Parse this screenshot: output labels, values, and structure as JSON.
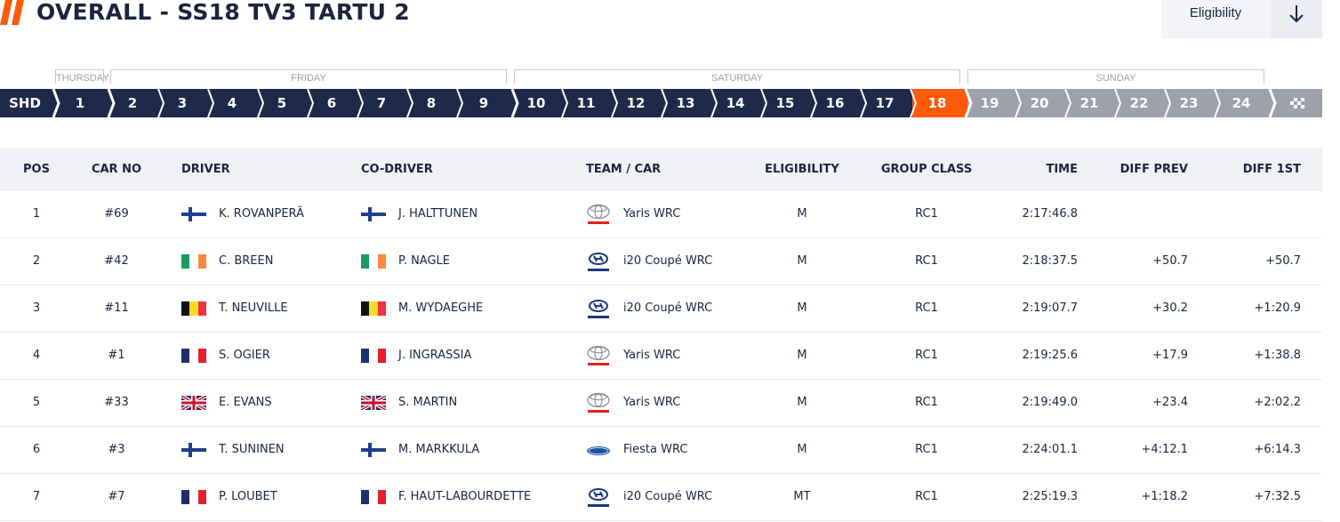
{
  "header": {
    "title": "OVERALL - SS18 TV3 TARTU 2",
    "eligibility_button": "Eligibility"
  },
  "colors": {
    "navy": "#1f2a4a",
    "accent": "#ff5a0a",
    "future": "#9ea1aa"
  },
  "days": [
    "THURSDAY",
    "FRIDAY",
    "SATURDAY",
    "SUNDAY"
  ],
  "stages": [
    "SHD",
    "1",
    "2",
    "3",
    "4",
    "5",
    "6",
    "7",
    "8",
    "9",
    "10",
    "11",
    "12",
    "13",
    "14",
    "15",
    "16",
    "17",
    "18",
    "19",
    "20",
    "21",
    "22",
    "23",
    "24"
  ],
  "current_stage": "18",
  "columns": [
    "POS",
    "CAR NO",
    "DRIVER",
    "CO-DRIVER",
    "TEAM / CAR",
    "ELIGIBILITY",
    "GROUP CLASS",
    "TIME",
    "DIFF PREV",
    "DIFF 1ST"
  ],
  "rows": [
    {
      "pos": "1",
      "car": "#69",
      "driver": "K. ROVANPERÄ",
      "codriver": "J. HALTTUNEN",
      "team_car": "Yaris WRC",
      "eligibility": "M",
      "class": "RC1",
      "time": "2:17:46.8",
      "diff_prev": "",
      "diff_first": ""
    },
    {
      "pos": "2",
      "car": "#42",
      "driver": "C. BREEN",
      "codriver": "P. NAGLE",
      "team_car": "i20 Coupé WRC",
      "eligibility": "M",
      "class": "RC1",
      "time": "2:18:37.5",
      "diff_prev": "+50.7",
      "diff_first": "+50.7"
    },
    {
      "pos": "3",
      "car": "#11",
      "driver": "T. NEUVILLE",
      "codriver": "M. WYDAEGHE",
      "team_car": "i20 Coupé WRC",
      "eligibility": "M",
      "class": "RC1",
      "time": "2:19:07.7",
      "diff_prev": "+30.2",
      "diff_first": "+1:20.9"
    },
    {
      "pos": "4",
      "car": "#1",
      "driver": "S. OGIER",
      "codriver": "J. INGRASSIA",
      "team_car": "Yaris WRC",
      "eligibility": "M",
      "class": "RC1",
      "time": "2:19:25.6",
      "diff_prev": "+17.9",
      "diff_first": "+1:38.8"
    },
    {
      "pos": "5",
      "car": "#33",
      "driver": "E. EVANS",
      "codriver": "S. MARTIN",
      "team_car": "Yaris WRC",
      "eligibility": "M",
      "class": "RC1",
      "time": "2:19:49.0",
      "diff_prev": "+23.4",
      "diff_first": "+2:02.2"
    },
    {
      "pos": "6",
      "car": "#3",
      "driver": "T. SUNINEN",
      "codriver": "M. MARKKULA",
      "team_car": "Fiesta WRC",
      "eligibility": "M",
      "class": "RC1",
      "time": "2:24:01.1",
      "diff_prev": "+4:12.1",
      "diff_first": "+6:14.3"
    },
    {
      "pos": "7",
      "car": "#7",
      "driver": "P. LOUBET",
      "codriver": "F. HAUT-LABOURDETTE",
      "team_car": "i20 Coupé WRC",
      "eligibility": "MT",
      "class": "RC1",
      "time": "2:25:19.3",
      "diff_prev": "+1:18.2",
      "diff_first": "+7:32.5"
    }
  ]
}
